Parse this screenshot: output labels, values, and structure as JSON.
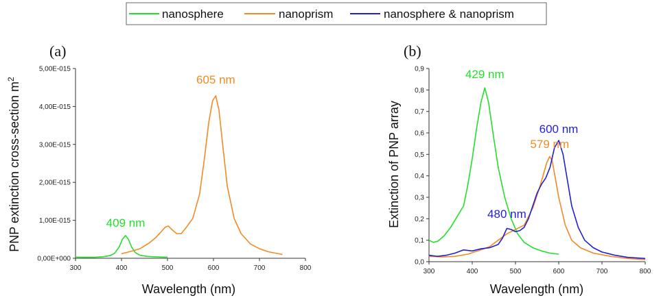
{
  "legend": {
    "items": [
      {
        "label": "nanosphere",
        "color": "#22e02a"
      },
      {
        "label": "nanoprism",
        "color": "#f08a24"
      },
      {
        "label": "nanosphere & nanoprism",
        "color": "#1f1fd6"
      }
    ]
  },
  "chart_data": [
    {
      "type": "line",
      "panel_label": "(a)",
      "xlabel": "Wavelength (nm)",
      "ylabel": "PNP extinction cross-section m",
      "ylabel_superscript": "2",
      "xlim": [
        300,
        800
      ],
      "ylim": [
        0,
        5e-15
      ],
      "xticks": [
        300,
        400,
        500,
        600,
        700,
        800
      ],
      "yticks": [
        0,
        1e-15,
        2e-15,
        3e-15,
        4e-15,
        5e-15
      ],
      "ytick_labels": [
        "0,00E+000",
        "1,00E-015",
        "2,00E-015",
        "3,00E-015",
        "4,00E-015",
        "5,00E-015"
      ],
      "series": [
        {
          "name": "nanosphere",
          "color": "#22e02a",
          "x": [
            300,
            320,
            340,
            360,
            375,
            385,
            395,
            402,
            409,
            415,
            422,
            430,
            440,
            455,
            470,
            490,
            500
          ],
          "y": [
            3e-17,
            2.5e-17,
            2.5e-17,
            4e-17,
            7e-17,
            1.3e-16,
            3e-16,
            5e-16,
            6e-16,
            5e-16,
            3e-16,
            1.5e-16,
            8e-17,
            5e-17,
            4e-17,
            3e-17,
            3e-17
          ]
        },
        {
          "name": "nanoprism",
          "color": "#f08a24",
          "x": [
            400,
            420,
            440,
            460,
            475,
            485,
            495,
            502,
            510,
            520,
            530,
            540,
            555,
            570,
            580,
            590,
            598,
            605,
            612,
            620,
            630,
            645,
            660,
            680,
            700,
            720,
            750
          ],
          "y": [
            1.2e-16,
            1.8e-16,
            2.5e-16,
            4e-16,
            5.5e-16,
            6.8e-16,
            8.2e-16,
            8.5e-16,
            7.5e-16,
            6.5e-16,
            6.5e-16,
            8e-16,
            1.05e-15,
            1.7e-15,
            2.6e-15,
            3.6e-15,
            4.15e-15,
            4.28e-15,
            3.9e-15,
            3e-15,
            1.9e-15,
            1.05e-15,
            6.5e-16,
            3.8e-16,
            2.5e-16,
            1.7e-16,
            1e-16
          ]
        }
      ],
      "annotations": [
        {
          "text": "409 nm",
          "color": "#22e02a",
          "x": 409,
          "y": 8.3e-16
        },
        {
          "text": "605 nm",
          "color": "#f08a24",
          "x": 605,
          "y": 4.6e-15
        }
      ]
    },
    {
      "type": "line",
      "panel_label": "(b)",
      "xlabel": "Wavelength (nm)",
      "ylabel": "Extinction of PNP array",
      "xlim": [
        300,
        800
      ],
      "ylim": [
        0,
        0.9
      ],
      "xticks": [
        300,
        400,
        500,
        600,
        700,
        800
      ],
      "yticks": [
        0,
        0.1,
        0.2,
        0.3,
        0.4,
        0.5,
        0.6,
        0.7,
        0.8,
        0.9
      ],
      "ytick_labels": [
        "0,0",
        "0,1",
        "0,2",
        "0,3",
        "0,4",
        "0,5",
        "0,6",
        "0,7",
        "0,8",
        "0,9"
      ],
      "series": [
        {
          "name": "nanosphere",
          "color": "#22e02a",
          "x": [
            300,
            310,
            320,
            335,
            350,
            365,
            380,
            390,
            400,
            410,
            420,
            429,
            438,
            448,
            460,
            475,
            490,
            505,
            520,
            540,
            560,
            580,
            600
          ],
          "y": [
            0.1,
            0.09,
            0.095,
            0.12,
            0.16,
            0.21,
            0.26,
            0.36,
            0.48,
            0.62,
            0.74,
            0.81,
            0.74,
            0.6,
            0.44,
            0.3,
            0.2,
            0.13,
            0.09,
            0.065,
            0.05,
            0.04,
            0.035
          ]
        },
        {
          "name": "nanoprism",
          "color": "#f08a24",
          "x": [
            300,
            330,
            360,
            390,
            420,
            440,
            460,
            480,
            500,
            520,
            540,
            555,
            565,
            572,
            579,
            585,
            592,
            600,
            615,
            630,
            650,
            680,
            720,
            760,
            800
          ],
          "y": [
            0.025,
            0.022,
            0.025,
            0.035,
            0.055,
            0.07,
            0.1,
            0.13,
            0.15,
            0.17,
            0.25,
            0.34,
            0.41,
            0.46,
            0.49,
            0.47,
            0.39,
            0.3,
            0.17,
            0.1,
            0.065,
            0.04,
            0.025,
            0.015,
            0.01
          ]
        },
        {
          "name": "nanosphere & nanoprism",
          "color": "#1f1fd6",
          "x": [
            300,
            320,
            340,
            360,
            380,
            400,
            420,
            440,
            460,
            470,
            480,
            490,
            500,
            510,
            520,
            530,
            540,
            550,
            560,
            570,
            580,
            590,
            600,
            610,
            620,
            630,
            645,
            660,
            680,
            700,
            730,
            760,
            800
          ],
          "y": [
            0.03,
            0.025,
            0.03,
            0.04,
            0.055,
            0.05,
            0.06,
            0.065,
            0.08,
            0.11,
            0.155,
            0.15,
            0.14,
            0.145,
            0.16,
            0.2,
            0.26,
            0.32,
            0.36,
            0.39,
            0.44,
            0.53,
            0.565,
            0.5,
            0.38,
            0.26,
            0.16,
            0.1,
            0.065,
            0.045,
            0.03,
            0.02,
            0.015
          ]
        }
      ],
      "annotations": [
        {
          "text": "429 nm",
          "color": "#22e02a",
          "x": 429,
          "y": 0.855
        },
        {
          "text": "579 nm",
          "color": "#f08a24",
          "x": 579,
          "y": 0.53
        },
        {
          "text": "600 nm",
          "color": "#1f1fd6",
          "x": 600,
          "y": 0.6
        },
        {
          "text": "480 nm",
          "color": "#1f1fd6",
          "x": 480,
          "y": 0.205
        }
      ]
    }
  ]
}
